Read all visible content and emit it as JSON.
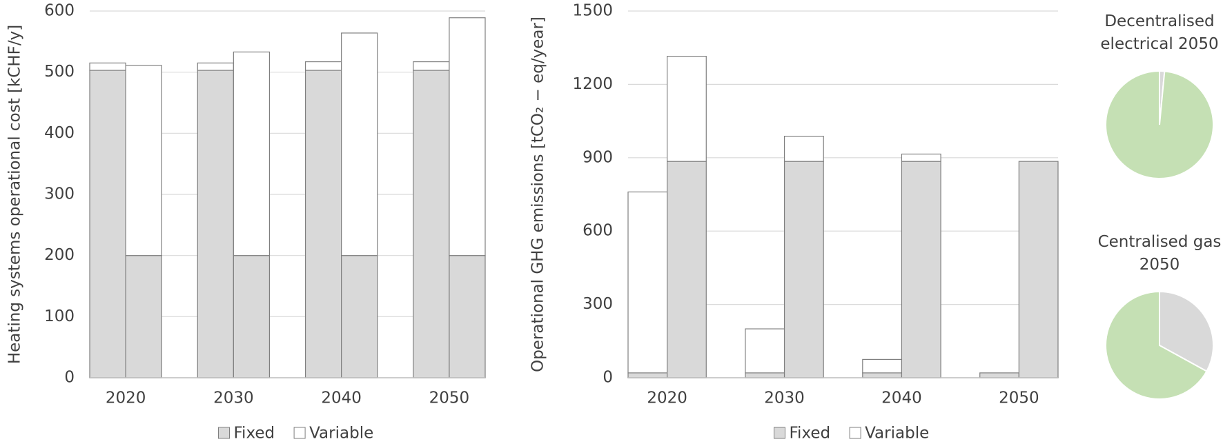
{
  "chart_data": [
    {
      "type": "grouped-stacked-bar",
      "ylabel": "Heating systems operational cost [kCHF/y]",
      "categories": [
        "2020",
        "2030",
        "2040",
        "2050"
      ],
      "series": [
        {
          "name": "Fixed",
          "color": "#d9d9d9",
          "values": [
            [
              503,
              200
            ],
            [
              503,
              200
            ],
            [
              503,
              200
            ],
            [
              503,
              200
            ]
          ]
        },
        {
          "name": "Variable",
          "color": "#ffffff",
          "values": [
            [
              12,
              311
            ],
            [
              12,
              333
            ],
            [
              14,
              364
            ],
            [
              14,
              389
            ]
          ]
        }
      ],
      "ylim": [
        0,
        600
      ],
      "yticks": [
        0,
        100,
        200,
        300,
        400,
        500,
        600
      ],
      "grid": true,
      "legend": "bottom"
    },
    {
      "type": "grouped-stacked-bar",
      "ylabel": "Operational GHG emissions [tCO₂ − eq/year]",
      "categories": [
        "2020",
        "2030",
        "2040",
        "2050"
      ],
      "series": [
        {
          "name": "Fixed",
          "color": "#d9d9d9",
          "values": [
            [
              20,
              885
            ],
            [
              20,
              885
            ],
            [
              20,
              885
            ],
            [
              20,
              885
            ]
          ]
        },
        {
          "name": "Variable",
          "color": "#ffffff",
          "values": [
            [
              740,
              430
            ],
            [
              180,
              103
            ],
            [
              55,
              30
            ],
            [
              0,
              0
            ]
          ]
        }
      ],
      "ylim": [
        0,
        1500
      ],
      "yticks": [
        0,
        300,
        600,
        900,
        1200,
        1500
      ],
      "grid": true,
      "legend": "bottom"
    },
    {
      "type": "pie",
      "title": "Decentralised electrical 2050",
      "values": [
        1.5,
        98.5
      ],
      "colors": [
        "#d9d9d9",
        "#c5e0b4"
      ]
    },
    {
      "type": "pie",
      "title": "Centralised gas 2050",
      "values": [
        33,
        67
      ],
      "colors": [
        "#d9d9d9",
        "#c5e0b4"
      ]
    }
  ]
}
